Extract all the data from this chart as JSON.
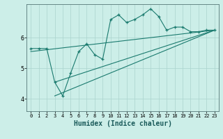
{
  "bg_color": "#cceee8",
  "line_color": "#1a7a6e",
  "grid_color": "#aad4ce",
  "xlabel": "Humidex (Indice chaleur)",
  "xlabel_fontsize": 7,
  "yticks": [
    4,
    5,
    6
  ],
  "xticks": [
    0,
    1,
    2,
    3,
    4,
    5,
    6,
    7,
    8,
    9,
    10,
    11,
    12,
    13,
    14,
    15,
    16,
    17,
    18,
    19,
    20,
    21,
    22,
    23
  ],
  "xlim": [
    -0.5,
    23.5
  ],
  "ylim": [
    3.6,
    7.1
  ],
  "main_x": [
    0,
    1,
    2,
    3,
    4,
    5,
    6,
    7,
    8,
    9,
    10,
    11,
    12,
    13,
    14,
    15,
    16,
    17,
    18,
    19,
    20,
    21,
    22,
    23
  ],
  "main_y": [
    5.65,
    5.65,
    5.65,
    4.55,
    4.1,
    4.85,
    5.55,
    5.8,
    5.45,
    5.3,
    6.6,
    6.75,
    6.5,
    6.6,
    6.75,
    6.95,
    6.7,
    6.25,
    6.35,
    6.35,
    6.2,
    6.2,
    6.25,
    6.25
  ],
  "line1_x": [
    3,
    23
  ],
  "line1_y": [
    4.1,
    6.25
  ],
  "line2_x": [
    3,
    23
  ],
  "line2_y": [
    4.55,
    6.25
  ],
  "line3_x": [
    0,
    23
  ],
  "line3_y": [
    5.55,
    6.25
  ]
}
